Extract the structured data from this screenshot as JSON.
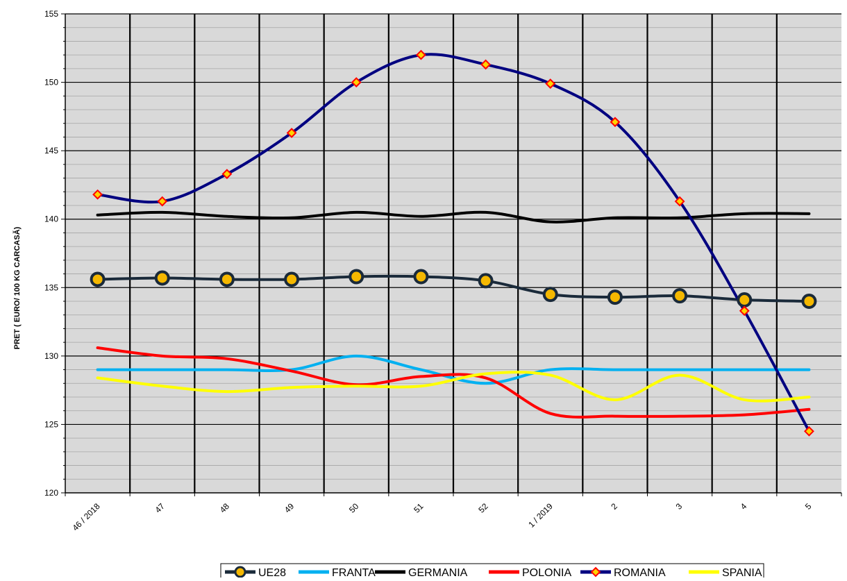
{
  "chart_data": {
    "type": "line",
    "title": "",
    "xlabel": "",
    "ylabel": "PRET ( EURO/ 100 KG CARCASĂ)",
    "ylim": [
      120,
      155
    ],
    "yticks": [
      120,
      125,
      130,
      135,
      140,
      145,
      150,
      155
    ],
    "categories": [
      "46 / 2018",
      "47",
      "48",
      "49",
      "50",
      "51",
      "52",
      "1 / 2019",
      "2",
      "3",
      "4",
      "5"
    ],
    "grid": true,
    "legend_position": "bottom",
    "plot_background": "#d9d9d9",
    "series": [
      {
        "name": "UE28",
        "color": "#1a2a3a",
        "marker": "circle",
        "marker_fill": "#f5b800",
        "values": [
          135.6,
          135.7,
          135.6,
          135.6,
          135.8,
          135.8,
          135.5,
          134.5,
          134.3,
          134.4,
          134.1,
          134.0
        ]
      },
      {
        "name": "FRANTA",
        "color": "#00b0f0",
        "marker": "none",
        "values": [
          129.0,
          129.0,
          129.0,
          129.0,
          130.0,
          129.0,
          128.0,
          129.0,
          129.0,
          129.0,
          129.0,
          129.0
        ]
      },
      {
        "name": "GERMANIA",
        "color": "#000000",
        "marker": "none",
        "values": [
          140.3,
          140.5,
          140.2,
          140.1,
          140.5,
          140.2,
          140.5,
          139.8,
          140.1,
          140.1,
          140.4,
          140.4
        ]
      },
      {
        "name": "POLONIA",
        "color": "#ff0000",
        "marker": "none",
        "values": [
          130.6,
          130.0,
          129.8,
          128.9,
          127.9,
          128.5,
          128.4,
          125.8,
          125.6,
          125.6,
          125.7,
          126.1
        ]
      },
      {
        "name": "ROMANIA",
        "color": "#000080",
        "marker": "diamond",
        "marker_fill": "#ffd200",
        "marker_edge": "#ff0000",
        "values": [
          141.8,
          141.3,
          143.3,
          146.3,
          150.0,
          152.0,
          151.3,
          149.9,
          147.1,
          141.3,
          133.3,
          124.5
        ]
      },
      {
        "name": "SPANIA",
        "color": "#ffff00",
        "marker": "none",
        "values": [
          128.4,
          127.8,
          127.4,
          127.7,
          127.8,
          127.8,
          128.7,
          128.6,
          126.8,
          128.6,
          126.8,
          127.0
        ]
      }
    ]
  }
}
